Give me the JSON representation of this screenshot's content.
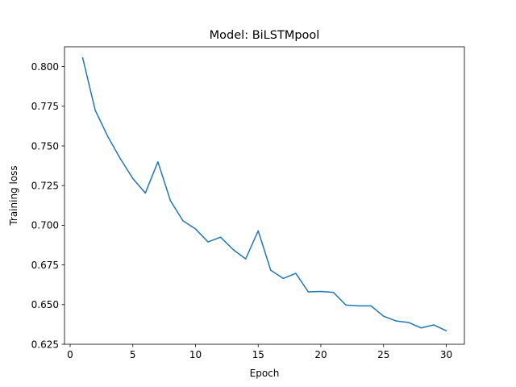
{
  "chart_data": {
    "type": "line",
    "title": "Model: BiLSTMpool",
    "xlabel": "Epoch",
    "ylabel": "Training loss",
    "xlim": [
      -0.45,
      31.45
    ],
    "ylim": [
      0.625,
      0.8125
    ],
    "x_ticks": [
      0,
      5,
      10,
      15,
      20,
      25,
      30
    ],
    "y_ticks": [
      0.625,
      0.65,
      0.675,
      0.7,
      0.725,
      0.75,
      0.775,
      0.8
    ],
    "x_tick_labels": [
      "0",
      "5",
      "10",
      "15",
      "20",
      "25",
      "30"
    ],
    "y_tick_labels": [
      "0.625",
      "0.650",
      "0.675",
      "0.700",
      "0.725",
      "0.750",
      "0.775",
      "0.800"
    ],
    "grid": false,
    "legend": "none",
    "series": [
      {
        "color": "#1f77b4",
        "x": [
          1,
          2,
          3,
          4,
          5,
          6,
          7,
          8,
          9,
          10,
          11,
          12,
          13,
          14,
          15,
          16,
          17,
          18,
          19,
          20,
          21,
          22,
          23,
          24,
          25,
          26,
          27,
          28,
          29,
          30
        ],
        "y": [
          0.8055,
          0.7725,
          0.756,
          0.742,
          0.7295,
          0.7203,
          0.74,
          0.7155,
          0.7028,
          0.6977,
          0.6895,
          0.6925,
          0.6847,
          0.6788,
          0.6965,
          0.6717,
          0.6665,
          0.6697,
          0.658,
          0.6583,
          0.6577,
          0.6497,
          0.6492,
          0.6492,
          0.6427,
          0.6397,
          0.6387,
          0.6353,
          0.6372,
          0.6335
        ]
      }
    ]
  }
}
